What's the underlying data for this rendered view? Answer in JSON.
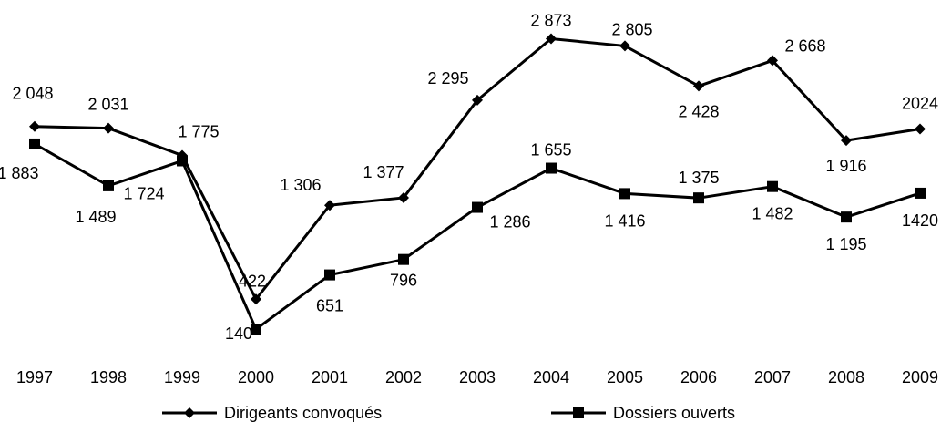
{
  "chart_data": {
    "type": "line",
    "categories": [
      "1997",
      "1998",
      "1999",
      "2000",
      "2001",
      "2002",
      "2003",
      "2004",
      "2005",
      "2006",
      "2007",
      "2008",
      "2009"
    ],
    "series": [
      {
        "name": "Dirigeants convoqués",
        "values": [
          2048,
          2031,
          1775,
          422,
          1306,
          1377,
          2295,
          2873,
          2805,
          2428,
          2668,
          1916,
          2024
        ],
        "labels": [
          "2 048",
          "2 031",
          "1 775",
          "422",
          "1 306",
          "1 377",
          "2 295",
          "2 873",
          "2 805",
          "2 428",
          "2 668",
          "1 916",
          "2024"
        ],
        "marker": "diamond",
        "color": "#000000"
      },
      {
        "name": "Dossiers ouverts",
        "values": [
          1883,
          1489,
          1724,
          140,
          651,
          796,
          1286,
          1655,
          1416,
          1375,
          1482,
          1195,
          1420
        ],
        "labels": [
          "1 883",
          "1 489",
          "1 724",
          "140",
          "651",
          "796",
          "1 286",
          "1 655",
          "1 416",
          "1 375",
          "1 482",
          "1 195",
          "1420"
        ],
        "marker": "square",
        "color": "#000000"
      }
    ],
    "title": "",
    "xlabel": "",
    "ylabel": "",
    "ylim": [
      0,
      3000
    ],
    "grid": false,
    "legend_position": "bottom"
  }
}
